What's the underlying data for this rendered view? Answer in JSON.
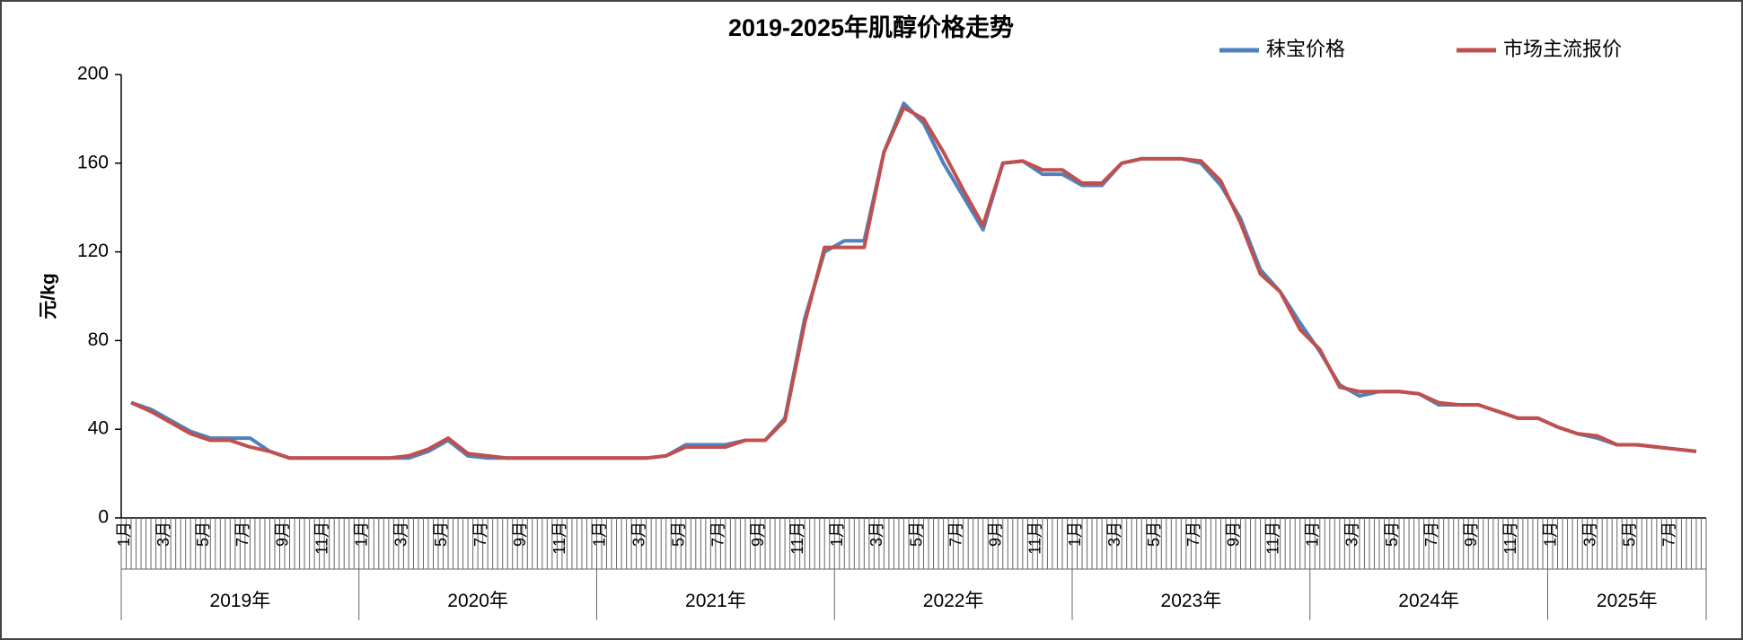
{
  "chart_data": {
    "type": "line",
    "title": "2019-2025年肌醇价格走势",
    "y_label": "元/kg",
    "categories": [
      "1月",
      null,
      "3月",
      null,
      "5月",
      null,
      "7月",
      null,
      "9月",
      null,
      "11月",
      null,
      "1月",
      null,
      "3月",
      null,
      "5月",
      null,
      "7月",
      null,
      "9月",
      null,
      "11月",
      null,
      "1月",
      null,
      "3月",
      null,
      "5月",
      null,
      "7月",
      null,
      "9月",
      null,
      "11月",
      null,
      "1月",
      null,
      "3月",
      null,
      "5月",
      null,
      "7月",
      null,
      "9月",
      null,
      "11月",
      null,
      "1月",
      null,
      "3月",
      null,
      "5月",
      null,
      "7月",
      null,
      "9月",
      null,
      "11月",
      null,
      "1月",
      null,
      "3月",
      null,
      "5月",
      null,
      "7月",
      null,
      "9月",
      null,
      "11月",
      null,
      "1月",
      null,
      "3月",
      null,
      "5月",
      null,
      "7月",
      null
    ],
    "years": [
      "2019年",
      "2020年",
      "2021年",
      "2022年",
      "2023年",
      "2024年",
      "2025年"
    ],
    "series": [
      {
        "name": "秣宝价格",
        "color": "#4f81bd",
        "values": [
          52,
          49,
          44,
          39,
          36,
          36,
          36,
          30,
          27,
          27,
          27,
          27,
          27,
          27,
          27,
          30,
          35,
          28,
          27,
          27,
          27,
          27,
          27,
          27,
          27,
          27,
          27,
          28,
          33,
          33,
          33,
          35,
          35,
          45,
          90,
          120,
          125,
          125,
          165,
          187,
          178,
          160,
          145,
          130,
          160,
          161,
          155,
          155,
          150,
          150,
          160,
          162,
          162,
          162,
          160,
          150,
          135,
          112,
          102,
          88,
          75,
          60,
          55,
          57,
          57,
          56,
          51,
          51,
          51,
          48,
          45,
          45,
          41,
          38,
          36,
          33,
          33,
          32,
          31,
          30
        ]
      },
      {
        "name": "市场主流报价",
        "color": "#c0504d",
        "values": [
          52,
          48,
          43,
          38,
          35,
          35,
          32,
          30,
          27,
          27,
          27,
          27,
          27,
          27,
          28,
          31,
          36,
          29,
          28,
          27,
          27,
          27,
          27,
          27,
          27,
          27,
          27,
          28,
          32,
          32,
          32,
          35,
          35,
          44,
          88,
          122,
          122,
          122,
          165,
          185,
          180,
          165,
          148,
          132,
          160,
          161,
          157,
          157,
          151,
          151,
          160,
          162,
          162,
          162,
          161,
          152,
          133,
          110,
          102,
          85,
          76,
          59,
          57,
          57,
          57,
          56,
          52,
          51,
          51,
          48,
          45,
          45,
          41,
          38,
          37,
          33,
          33,
          32,
          31,
          30
        ]
      }
    ],
    "ylim": [
      0,
      200
    ],
    "yticks": [
      0,
      40,
      80,
      120,
      160,
      200
    ],
    "legend": "top-right"
  }
}
